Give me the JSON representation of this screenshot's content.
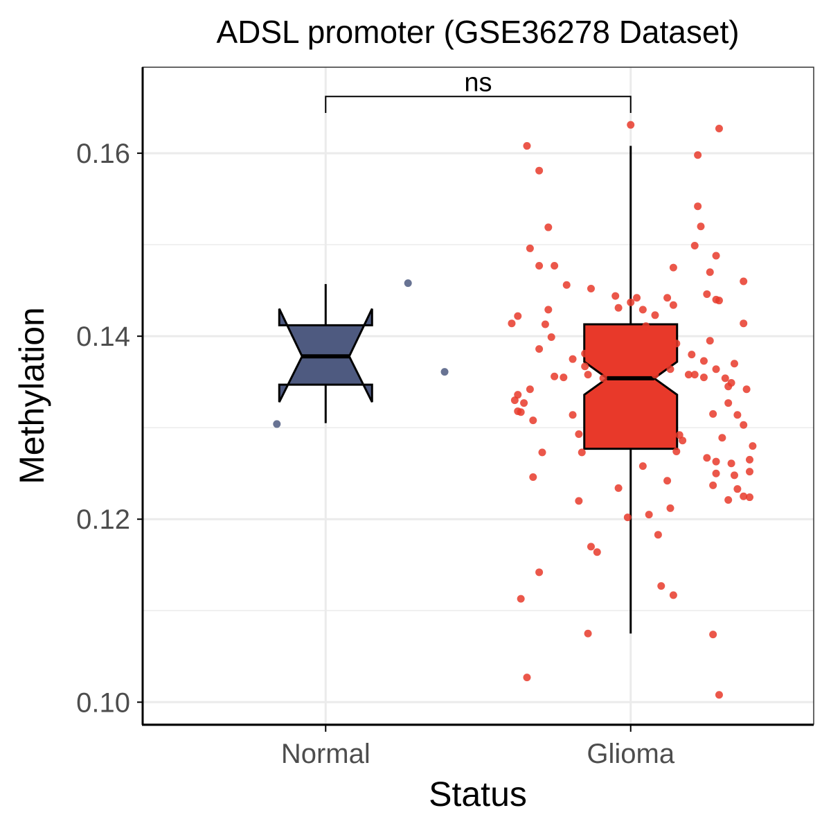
{
  "chart_data": {
    "type": "box",
    "title": "ADSL promoter (GSE36278 Dataset)",
    "xlabel": "Status",
    "ylabel": "Methylation",
    "categories": [
      "Normal",
      "Glioma"
    ],
    "ylim": [
      0.0976,
      0.1694
    ],
    "xlim": [
      0.4,
      2.6
    ],
    "yticks": [
      0.1,
      0.12,
      0.14,
      0.16
    ],
    "ytick_labels": [
      "0.10",
      "0.12",
      "0.14",
      "0.16"
    ],
    "minor_gridlines": [
      0.11,
      0.13,
      0.15
    ],
    "grid": true,
    "legend": "none",
    "colors": {
      "Normal": "#4E5A80",
      "Glioma": "#E8392A"
    },
    "boxes": [
      {
        "category": "Normal",
        "whisker_low": 0.1305,
        "q1": 0.1347,
        "median": 0.1378,
        "q3": 0.1412,
        "whisker_high": 0.1457,
        "notch_low": 0.1328,
        "notch_high": 0.143
      },
      {
        "category": "Glioma",
        "whisker_low": 0.1075,
        "q1": 0.1277,
        "median": 0.1354,
        "q3": 0.1413,
        "whisker_high": 0.1608,
        "notch_low": 0.1336,
        "notch_high": 0.1372
      }
    ],
    "significance": {
      "label": "ns",
      "from": "Normal",
      "to": "Glioma",
      "y": 0.1662,
      "tick_bottom": 0.1644
    },
    "points": {
      "Normal": [
        [
          0.84,
          0.1304
        ],
        [
          1.27,
          0.1458
        ],
        [
          1.39,
          0.1361
        ]
      ],
      "Glioma": [
        [
          2.0,
          0.1631
        ],
        [
          2.29,
          0.1627
        ],
        [
          1.66,
          0.1608
        ],
        [
          2.22,
          0.1598
        ],
        [
          1.7,
          0.1581
        ],
        [
          2.22,
          0.1542
        ],
        [
          1.73,
          0.1519
        ],
        [
          2.23,
          0.152
        ],
        [
          1.67,
          0.1496
        ],
        [
          2.21,
          0.1499
        ],
        [
          2.28,
          0.1488
        ],
        [
          1.7,
          0.1477
        ],
        [
          1.75,
          0.1477
        ],
        [
          2.14,
          0.1475
        ],
        [
          2.26,
          0.147
        ],
        [
          1.79,
          0.1456
        ],
        [
          1.87,
          0.1452
        ],
        [
          2.37,
          0.146
        ],
        [
          1.95,
          0.1444
        ],
        [
          2.02,
          0.1442
        ],
        [
          1.96,
          0.1431
        ],
        [
          2.0,
          0.1437
        ],
        [
          2.04,
          0.1429
        ],
        [
          2.12,
          0.1442
        ],
        [
          2.14,
          0.1434
        ],
        [
          2.08,
          0.1423
        ],
        [
          2.25,
          0.1446
        ],
        [
          2.28,
          0.144
        ],
        [
          2.29,
          0.1439
        ],
        [
          1.73,
          0.1429
        ],
        [
          1.63,
          0.1422
        ],
        [
          1.61,
          0.1414
        ],
        [
          1.72,
          0.1413
        ],
        [
          2.37,
          0.1414
        ],
        [
          2.05,
          0.1411
        ],
        [
          1.74,
          0.1399
        ],
        [
          2.26,
          0.1395
        ],
        [
          1.7,
          0.1386
        ],
        [
          1.85,
          0.1381
        ],
        [
          2.15,
          0.1392
        ],
        [
          2.13,
          0.1378
        ],
        [
          2.2,
          0.138
        ],
        [
          2.24,
          0.1373
        ],
        [
          2.28,
          0.1364
        ],
        [
          2.34,
          0.137
        ],
        [
          1.81,
          0.1375
        ],
        [
          1.75,
          0.1356
        ],
        [
          1.78,
          0.1355
        ],
        [
          1.91,
          0.1354
        ],
        [
          1.85,
          0.1367
        ],
        [
          1.86,
          0.1358
        ],
        [
          2.08,
          0.1358
        ],
        [
          2.13,
          0.1364
        ],
        [
          2.19,
          0.1358
        ],
        [
          2.21,
          0.1358
        ],
        [
          2.24,
          0.1355
        ],
        [
          2.31,
          0.1354
        ],
        [
          2.33,
          0.1349
        ],
        [
          2.32,
          0.1345
        ],
        [
          2.38,
          0.1342
        ],
        [
          1.67,
          0.1342
        ],
        [
          1.63,
          0.1336
        ],
        [
          1.62,
          0.133
        ],
        [
          1.65,
          0.1327
        ],
        [
          1.63,
          0.1318
        ],
        [
          1.64,
          0.1317
        ],
        [
          1.68,
          0.1308
        ],
        [
          1.81,
          0.1314
        ],
        [
          2.32,
          0.1327
        ],
        [
          2.27,
          0.1315
        ],
        [
          2.35,
          0.1314
        ],
        [
          2.37,
          0.1303
        ],
        [
          1.83,
          0.1293
        ],
        [
          2.16,
          0.1292
        ],
        [
          2.17,
          0.1286
        ],
        [
          2.3,
          0.1289
        ],
        [
          1.71,
          0.1273
        ],
        [
          1.84,
          0.1273
        ],
        [
          2.15,
          0.1274
        ],
        [
          2.25,
          0.1267
        ],
        [
          2.28,
          0.1263
        ],
        [
          2.33,
          0.1261
        ],
        [
          2.39,
          0.1265
        ],
        [
          2.4,
          0.128
        ],
        [
          2.04,
          0.1258
        ],
        [
          2.28,
          0.125
        ],
        [
          2.34,
          0.1248
        ],
        [
          2.39,
          0.1252
        ],
        [
          1.68,
          0.1246
        ],
        [
          2.12,
          0.1242
        ],
        [
          2.27,
          0.1237
        ],
        [
          1.96,
          0.1234
        ],
        [
          2.35,
          0.1233
        ],
        [
          2.37,
          0.1225
        ],
        [
          2.39,
          0.1224
        ],
        [
          2.32,
          0.1221
        ],
        [
          1.83,
          0.122
        ],
        [
          2.13,
          0.1212
        ],
        [
          2.06,
          0.1205
        ],
        [
          1.99,
          0.1202
        ],
        [
          2.09,
          0.1183
        ],
        [
          1.87,
          0.117
        ],
        [
          1.89,
          0.1164
        ],
        [
          1.7,
          0.1142
        ],
        [
          2.1,
          0.1127
        ],
        [
          2.14,
          0.1117
        ],
        [
          1.64,
          0.1113
        ],
        [
          1.86,
          0.1075
        ],
        [
          2.27,
          0.1074
        ],
        [
          1.66,
          0.1027
        ],
        [
          2.29,
          0.1008
        ]
      ]
    }
  }
}
